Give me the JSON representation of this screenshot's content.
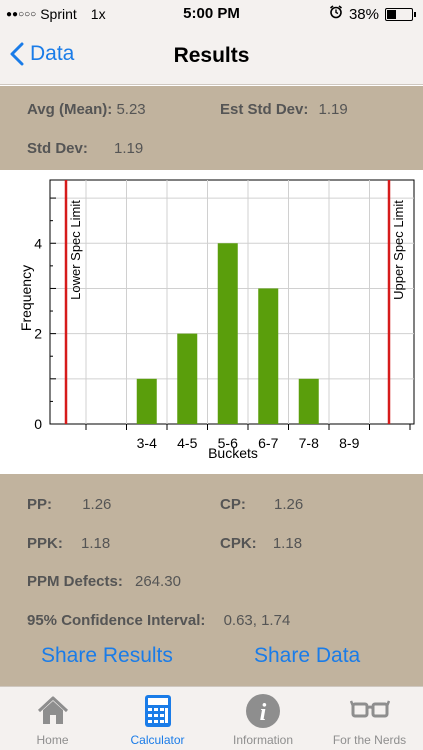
{
  "status_bar": {
    "carrier": "Sprint",
    "network": "1x",
    "time": "5:00 PM",
    "battery": "38%",
    "battery_level": 0.38
  },
  "nav": {
    "back_label": "Data",
    "title": "Results"
  },
  "stats_top": {
    "mean_label": "Avg (Mean):",
    "mean_value": "5.23",
    "est_std_label": "Est Std Dev:",
    "est_std_value": "1.19",
    "std_label": "Std Dev:",
    "std_value": "1.19"
  },
  "chart_data": {
    "type": "bar",
    "categories": [
      "3-4",
      "4-5",
      "5-6",
      "6-7",
      "7-8",
      "8-9"
    ],
    "values": [
      1,
      2,
      4,
      3,
      1,
      0
    ],
    "ylabel": "Frequency",
    "xlabel": "Buckets",
    "yticks": [
      "0",
      "2",
      "4"
    ],
    "ylim": [
      0,
      5.4
    ],
    "lower_limit_label": "Lower Spec Limit",
    "upper_limit_label": "Upper Spec Limit",
    "bar_color": "#5a9e0c",
    "limit_color": "#d61b1b",
    "grid": true
  },
  "stats_bottom": {
    "pp_label": "PP:",
    "pp_value": "1.26",
    "cp_label": "CP:",
    "cp_value": "1.26",
    "ppk_label": "PPK:",
    "ppk_value": "1.18",
    "cpk_label": "CPK:",
    "cpk_value": "1.18",
    "ppm_label": "PPM Defects:",
    "ppm_value": "264.30",
    "ci_label": "95% Confidence Interval:",
    "ci_value": "0.63, 1.74"
  },
  "actions": {
    "share_results": "Share Results",
    "share_data": "Share Data"
  },
  "tabs": [
    {
      "label": "Home",
      "icon": "home-icon"
    },
    {
      "label": "Calculator",
      "icon": "calculator-icon"
    },
    {
      "label": "Information",
      "icon": "info-icon"
    },
    {
      "label": "For the Nerds",
      "icon": "glasses-icon"
    }
  ],
  "colors": {
    "accent": "#1a7ce8",
    "stats_bg": "#c1b39e",
    "bar_bg": "#f4f1ef"
  }
}
